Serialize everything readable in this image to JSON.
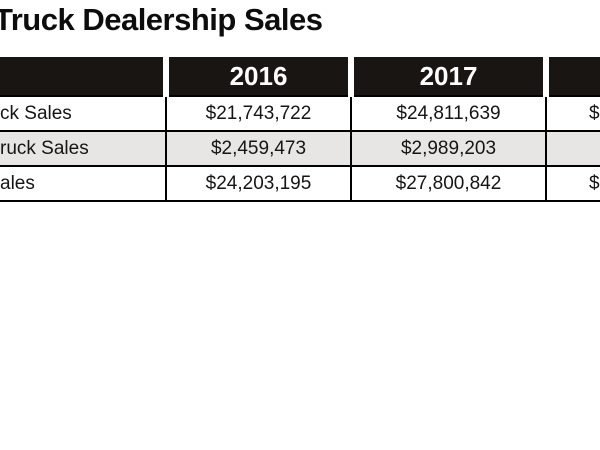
{
  "title": "Truck Dealership Sales",
  "table": {
    "header": {
      "label_column": "",
      "years": [
        "2016",
        "2017",
        ""
      ]
    },
    "rows": [
      {
        "label": "ck Sales",
        "values": [
          "$21,743,722",
          "$24,811,639",
          "$"
        ]
      },
      {
        "label": "ruck Sales",
        "values": [
          "$2,459,473",
          "$2,989,203",
          ""
        ]
      },
      {
        "label": "ales",
        "values": [
          "$24,203,195",
          "$27,800,842",
          "$"
        ]
      }
    ]
  },
  "colors": {
    "header_bg": "#191512",
    "header_text": "#ffffff",
    "alt_row_bg": "#e8e6e4",
    "border": "#000000",
    "body_text": "#151515"
  }
}
